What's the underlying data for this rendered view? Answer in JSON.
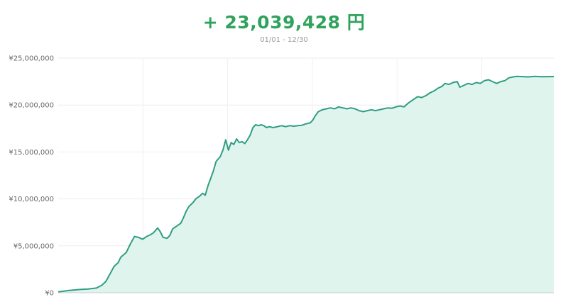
{
  "header": {
    "total_label": "+ 23,039,428 円",
    "date_range": "01/01 - 12/30"
  },
  "colors": {
    "line": "#2f9e82",
    "fill": "#dff4ed",
    "accent_text": "#2ea35c",
    "grid": "#eeeeee"
  },
  "chart_data": {
    "type": "area",
    "title": "",
    "xlabel": "",
    "ylabel": "",
    "ylim": [
      0,
      25000000
    ],
    "yticks": [
      {
        "value": 0,
        "label": "¥0"
      },
      {
        "value": 5000000,
        "label": "¥5,000,000"
      },
      {
        "value": 10000000,
        "label": "¥10,000,000"
      },
      {
        "value": 15000000,
        "label": "¥15,000,000"
      },
      {
        "value": 20000000,
        "label": "¥20,000,000"
      },
      {
        "value": 25000000,
        "label": "¥25,000,000"
      }
    ],
    "xlim": [
      0,
      364
    ],
    "grid": true,
    "legend": "none",
    "series": [
      {
        "values": [
          [
            0,
            100000
          ],
          [
            8,
            250000
          ],
          [
            16,
            350000
          ],
          [
            22,
            400000
          ],
          [
            28,
            500000
          ],
          [
            32,
            800000
          ],
          [
            35,
            1200000
          ],
          [
            38,
            2000000
          ],
          [
            41,
            2800000
          ],
          [
            44,
            3200000
          ],
          [
            46,
            3800000
          ],
          [
            50,
            4300000
          ],
          [
            53,
            5200000
          ],
          [
            56,
            6000000
          ],
          [
            59,
            5900000
          ],
          [
            62,
            5700000
          ],
          [
            65,
            6000000
          ],
          [
            68,
            6200000
          ],
          [
            70,
            6400000
          ],
          [
            73,
            6900000
          ],
          [
            75,
            6500000
          ],
          [
            77,
            5900000
          ],
          [
            80,
            5800000
          ],
          [
            82,
            6100000
          ],
          [
            84,
            6800000
          ],
          [
            86,
            7000000
          ],
          [
            88,
            7200000
          ],
          [
            90,
            7400000
          ],
          [
            92,
            8000000
          ],
          [
            94,
            8700000
          ],
          [
            96,
            9200000
          ],
          [
            99,
            9600000
          ],
          [
            101,
            10000000
          ],
          [
            104,
            10300000
          ],
          [
            106,
            10600000
          ],
          [
            108,
            10400000
          ],
          [
            110,
            11400000
          ],
          [
            112,
            12200000
          ],
          [
            114,
            13000000
          ],
          [
            116,
            14000000
          ],
          [
            119,
            14500000
          ],
          [
            121,
            15200000
          ],
          [
            123,
            16300000
          ],
          [
            125,
            15200000
          ],
          [
            127,
            16000000
          ],
          [
            129,
            15800000
          ],
          [
            131,
            16400000
          ],
          [
            133,
            16000000
          ],
          [
            135,
            16100000
          ],
          [
            137,
            15900000
          ],
          [
            139,
            16300000
          ],
          [
            141,
            16800000
          ],
          [
            143,
            17600000
          ],
          [
            145,
            17900000
          ],
          [
            147,
            17800000
          ],
          [
            149,
            17900000
          ],
          [
            151,
            17800000
          ],
          [
            153,
            17600000
          ],
          [
            155,
            17700000
          ],
          [
            158,
            17600000
          ],
          [
            161,
            17700000
          ],
          [
            164,
            17800000
          ],
          [
            167,
            17700000
          ],
          [
            170,
            17800000
          ],
          [
            173,
            17750000
          ],
          [
            176,
            17800000
          ],
          [
            179,
            17850000
          ],
          [
            182,
            18000000
          ],
          [
            185,
            18100000
          ],
          [
            187,
            18400000
          ],
          [
            189,
            18900000
          ],
          [
            191,
            19300000
          ],
          [
            194,
            19500000
          ],
          [
            197,
            19600000
          ],
          [
            200,
            19700000
          ],
          [
            203,
            19600000
          ],
          [
            206,
            19800000
          ],
          [
            209,
            19700000
          ],
          [
            212,
            19600000
          ],
          [
            215,
            19700000
          ],
          [
            218,
            19600000
          ],
          [
            221,
            19400000
          ],
          [
            224,
            19300000
          ],
          [
            227,
            19400000
          ],
          [
            230,
            19500000
          ],
          [
            233,
            19400000
          ],
          [
            236,
            19500000
          ],
          [
            239,
            19600000
          ],
          [
            242,
            19700000
          ],
          [
            245,
            19650000
          ],
          [
            248,
            19800000
          ],
          [
            251,
            19900000
          ],
          [
            254,
            19800000
          ],
          [
            257,
            20200000
          ],
          [
            260,
            20500000
          ],
          [
            262,
            20700000
          ],
          [
            264,
            20900000
          ],
          [
            267,
            20800000
          ],
          [
            270,
            21000000
          ],
          [
            273,
            21300000
          ],
          [
            276,
            21500000
          ],
          [
            279,
            21800000
          ],
          [
            282,
            22000000
          ],
          [
            284,
            22300000
          ],
          [
            287,
            22200000
          ],
          [
            290,
            22400000
          ],
          [
            293,
            22500000
          ],
          [
            295,
            21900000
          ],
          [
            298,
            22100000
          ],
          [
            301,
            22300000
          ],
          [
            304,
            22200000
          ],
          [
            307,
            22400000
          ],
          [
            310,
            22300000
          ],
          [
            313,
            22600000
          ],
          [
            316,
            22700000
          ],
          [
            319,
            22500000
          ],
          [
            322,
            22300000
          ],
          [
            325,
            22500000
          ],
          [
            328,
            22600000
          ],
          [
            331,
            22900000
          ],
          [
            334,
            23000000
          ],
          [
            337,
            23050000
          ],
          [
            340,
            23039428
          ],
          [
            345,
            23000000
          ],
          [
            350,
            23050000
          ],
          [
            355,
            23020000
          ],
          [
            364,
            23039428
          ]
        ]
      }
    ]
  }
}
